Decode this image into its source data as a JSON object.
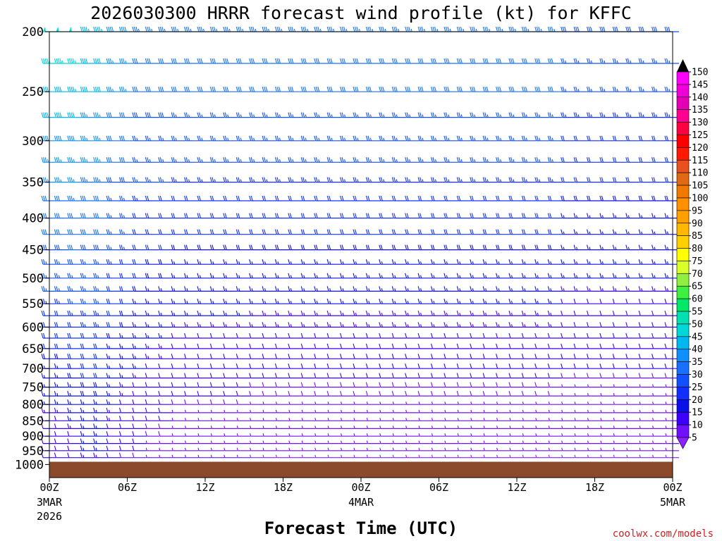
{
  "chart_data": {
    "type": "wind_barb_profile",
    "title": "2026030300 HRRR forecast wind profile (kt) for KFFC",
    "xlabel": "Forecast Time (UTC)",
    "ylabel": "",
    "ylim": [
      1050,
      200
    ],
    "xlim_hours": [
      0,
      48
    ],
    "y_ticks": [
      "200",
      "250",
      "300",
      "350",
      "400",
      "450",
      "500",
      "550",
      "600",
      "650",
      "700",
      "750",
      "800",
      "850",
      "900",
      "950",
      "1000"
    ],
    "y_tick_values": [
      200,
      250,
      300,
      350,
      400,
      450,
      500,
      550,
      600,
      650,
      700,
      750,
      800,
      850,
      900,
      950,
      1000
    ],
    "x_ticks": [
      {
        "hour": 0,
        "label": "00Z",
        "sub1": "3MAR",
        "sub2": "2026"
      },
      {
        "hour": 6,
        "label": "06Z",
        "sub1": "",
        "sub2": ""
      },
      {
        "hour": 12,
        "label": "12Z",
        "sub1": "",
        "sub2": ""
      },
      {
        "hour": 18,
        "label": "18Z",
        "sub1": "",
        "sub2": ""
      },
      {
        "hour": 24,
        "label": "00Z",
        "sub1": "4MAR",
        "sub2": ""
      },
      {
        "hour": 30,
        "label": "06Z",
        "sub1": "",
        "sub2": ""
      },
      {
        "hour": 36,
        "label": "12Z",
        "sub1": "",
        "sub2": ""
      },
      {
        "hour": 42,
        "label": "18Z",
        "sub1": "",
        "sub2": ""
      },
      {
        "hour": 48,
        "label": "00Z",
        "sub1": "5MAR",
        "sub2": ""
      }
    ],
    "surface_pressure_hpa": 990,
    "surface_color": "#8b4a2b",
    "colorbar": {
      "levels": [
        "150",
        "145",
        "140",
        "135",
        "130",
        "125",
        "120",
        "115",
        "110",
        "105",
        "100",
        "95",
        "90",
        "85",
        "80",
        "75",
        "70",
        "65",
        "60",
        "55",
        "50",
        "45",
        "40",
        "35",
        "30",
        "25",
        "20",
        "15",
        "10",
        "5"
      ],
      "colors": [
        "#ff00ff",
        "#f000d8",
        "#e400b4",
        "#ff0090",
        "#ff0040",
        "#ff0000",
        "#ff1a00",
        "#e8501e",
        "#e06a14",
        "#f07a00",
        "#ff9000",
        "#ffa000",
        "#ffb800",
        "#ffd000",
        "#ffff00",
        "#d8ff28",
        "#90f040",
        "#40f040",
        "#00e868",
        "#00e0b0",
        "#00d8d8",
        "#00b8f0",
        "#1090ff",
        "#1870ff",
        "#1050ff",
        "#1030ff",
        "#0c10e8",
        "#3c00ff",
        "#7010ff",
        "#8c20ff"
      ]
    },
    "time_columns_hours": [
      0,
      1,
      2,
      3,
      4,
      5,
      6,
      7,
      8,
      9,
      10,
      11,
      12,
      13,
      14,
      15,
      16,
      17,
      18,
      19,
      20,
      21,
      22,
      23,
      24,
      25,
      26,
      27,
      28,
      29,
      30,
      31,
      32,
      33,
      34,
      35,
      36,
      37,
      38,
      39,
      40,
      41,
      42,
      43,
      44,
      45,
      46,
      47,
      48
    ],
    "wind_speed_grid_kt": [
      {
        "p": 1000,
        "u": [
          10,
          10,
          12,
          15,
          15,
          12,
          10,
          10,
          8,
          8,
          6,
          6,
          6,
          6,
          6,
          6,
          5,
          5,
          5,
          5,
          5,
          5,
          5,
          5,
          5,
          5,
          5,
          5,
          5,
          5,
          5,
          5,
          5,
          5,
          5,
          5,
          5,
          5,
          5,
          5,
          5,
          5,
          5,
          5,
          5,
          5,
          5,
          5,
          5
        ]
      },
      {
        "p": 200,
        "u": [
          50,
          50,
          50,
          45,
          45,
          40,
          40,
          35,
          35,
          35,
          35,
          35,
          35,
          35,
          35,
          35,
          35,
          35,
          35,
          35,
          35,
          35,
          35,
          35,
          35,
          35,
          35,
          35,
          35,
          35,
          35,
          35,
          35,
          35,
          35,
          35,
          35,
          35,
          35,
          35,
          30,
          30,
          30,
          30,
          30,
          30,
          30,
          30,
          30
        ]
      }
    ]
  },
  "credit": "coolwx.com/models"
}
